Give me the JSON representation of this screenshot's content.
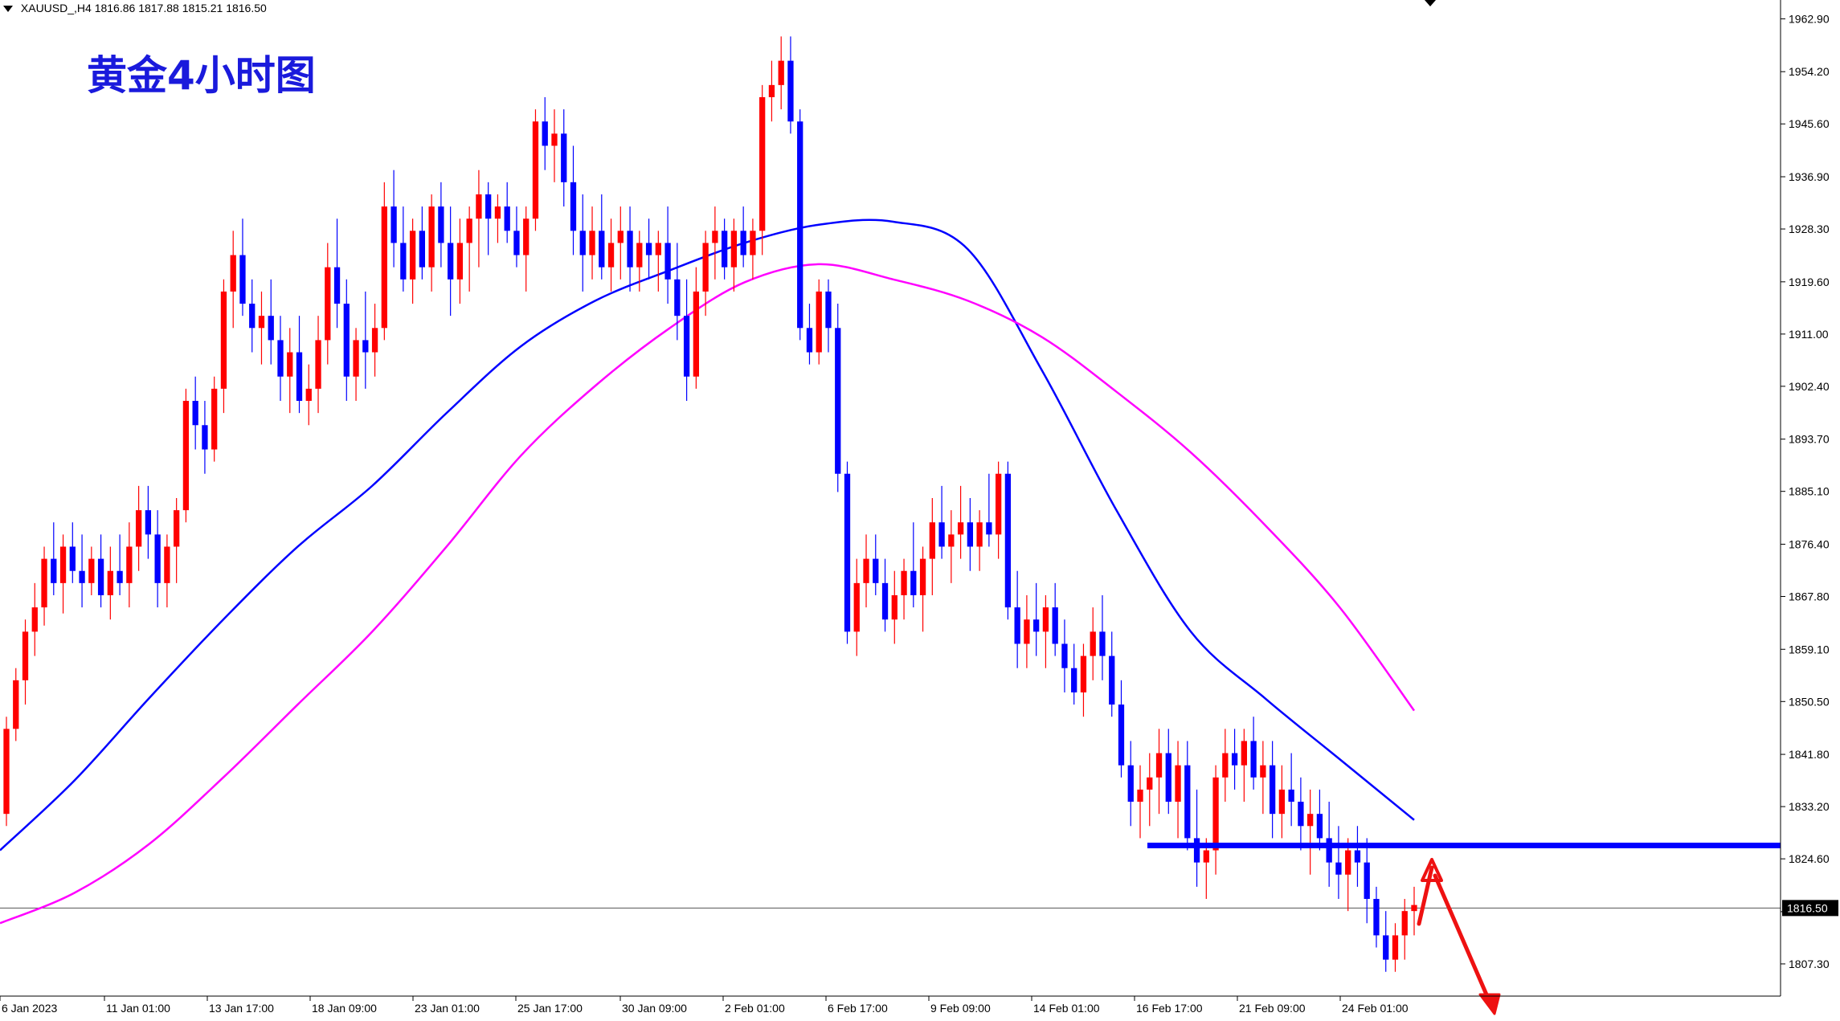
{
  "symbol": {
    "name": "XAUUSD_,H4",
    "open": "1816.86",
    "high": "1817.88",
    "low": "1815.21",
    "close": "1816.50"
  },
  "title": "黄金4小时图",
  "current_price_label": "1816.50",
  "colors": {
    "bull": "#ff0000",
    "bear": "#0000ff",
    "ma_fast": "#0000ff",
    "ma_slow": "#ff00ff",
    "annotation_line": "#0000ff",
    "annotation_arrow": "#ee1111",
    "title": "#1a1adc"
  },
  "chart_data": {
    "type": "candlestick",
    "symbol": "XAUUSD",
    "timeframe": "H4",
    "ylim": [
      1802.0,
      1966.0
    ],
    "y_ticks": [
      1962.9,
      1954.2,
      1945.6,
      1936.9,
      1928.3,
      1919.6,
      1911.0,
      1902.4,
      1893.7,
      1885.1,
      1876.4,
      1867.8,
      1859.1,
      1850.5,
      1841.8,
      1833.2,
      1824.6,
      1815.9,
      1807.3
    ],
    "x_ticks": [
      "6 Jan 2023",
      "11 Jan 01:00",
      "13 Jan 17:00",
      "18 Jan 09:00",
      "23 Jan 01:00",
      "25 Jan 17:00",
      "30 Jan 09:00",
      "2 Feb 01:00",
      "6 Feb 17:00",
      "9 Feb 09:00",
      "14 Feb 01:00",
      "16 Feb 17:00",
      "21 Feb 09:00",
      "24 Feb 01:00"
    ],
    "current_price": 1816.5,
    "ohlc": [
      [
        1832,
        1848,
        1830,
        1846
      ],
      [
        1846,
        1856,
        1844,
        1854
      ],
      [
        1854,
        1864,
        1850,
        1862
      ],
      [
        1862,
        1870,
        1858,
        1866
      ],
      [
        1866,
        1876,
        1863,
        1874
      ],
      [
        1874,
        1880,
        1868,
        1870
      ],
      [
        1870,
        1878,
        1865,
        1876
      ],
      [
        1876,
        1880,
        1870,
        1872
      ],
      [
        1872,
        1878,
        1866,
        1870
      ],
      [
        1870,
        1876,
        1868,
        1874
      ],
      [
        1874,
        1878,
        1866,
        1868
      ],
      [
        1868,
        1876,
        1864,
        1872
      ],
      [
        1872,
        1878,
        1868,
        1870
      ],
      [
        1870,
        1880,
        1866,
        1876
      ],
      [
        1876,
        1886,
        1872,
        1882
      ],
      [
        1882,
        1886,
        1874,
        1878
      ],
      [
        1878,
        1882,
        1866,
        1870
      ],
      [
        1870,
        1878,
        1866,
        1876
      ],
      [
        1876,
        1884,
        1870,
        1882
      ],
      [
        1882,
        1902,
        1880,
        1900
      ],
      [
        1900,
        1904,
        1892,
        1896
      ],
      [
        1896,
        1900,
        1888,
        1892
      ],
      [
        1892,
        1904,
        1890,
        1902
      ],
      [
        1902,
        1920,
        1898,
        1918
      ],
      [
        1918,
        1928,
        1912,
        1924
      ],
      [
        1924,
        1930,
        1914,
        1916
      ],
      [
        1916,
        1920,
        1908,
        1912
      ],
      [
        1912,
        1918,
        1906,
        1914
      ],
      [
        1914,
        1920,
        1906,
        1910
      ],
      [
        1910,
        1914,
        1900,
        1904
      ],
      [
        1904,
        1912,
        1898,
        1908
      ],
      [
        1908,
        1914,
        1898,
        1900
      ],
      [
        1900,
        1906,
        1896,
        1902
      ],
      [
        1902,
        1914,
        1898,
        1910
      ],
      [
        1910,
        1926,
        1906,
        1922
      ],
      [
        1922,
        1930,
        1912,
        1916
      ],
      [
        1916,
        1920,
        1900,
        1904
      ],
      [
        1904,
        1912,
        1900,
        1910
      ],
      [
        1910,
        1918,
        1902,
        1908
      ],
      [
        1908,
        1916,
        1904,
        1912
      ],
      [
        1912,
        1936,
        1910,
        1932
      ],
      [
        1932,
        1938,
        1922,
        1926
      ],
      [
        1926,
        1932,
        1918,
        1920
      ],
      [
        1920,
        1930,
        1916,
        1928
      ],
      [
        1928,
        1932,
        1920,
        1922
      ],
      [
        1922,
        1934,
        1918,
        1932
      ],
      [
        1932,
        1936,
        1922,
        1926
      ],
      [
        1926,
        1932,
        1914,
        1920
      ],
      [
        1920,
        1930,
        1916,
        1926
      ],
      [
        1926,
        1932,
        1918,
        1930
      ],
      [
        1930,
        1938,
        1922,
        1934
      ],
      [
        1934,
        1936,
        1924,
        1930
      ],
      [
        1930,
        1934,
        1926,
        1932
      ],
      [
        1932,
        1936,
        1926,
        1928
      ],
      [
        1928,
        1932,
        1922,
        1924
      ],
      [
        1924,
        1932,
        1918,
        1930
      ],
      [
        1930,
        1948,
        1928,
        1946
      ],
      [
        1946,
        1950,
        1938,
        1942
      ],
      [
        1942,
        1948,
        1936,
        1944
      ],
      [
        1944,
        1948,
        1932,
        1936
      ],
      [
        1936,
        1942,
        1924,
        1928
      ],
      [
        1928,
        1934,
        1918,
        1924
      ],
      [
        1924,
        1932,
        1920,
        1928
      ],
      [
        1928,
        1934,
        1920,
        1922
      ],
      [
        1922,
        1930,
        1918,
        1926
      ],
      [
        1926,
        1932,
        1920,
        1928
      ],
      [
        1928,
        1932,
        1918,
        1922
      ],
      [
        1922,
        1928,
        1918,
        1926
      ],
      [
        1926,
        1930,
        1920,
        1924
      ],
      [
        1924,
        1928,
        1918,
        1926
      ],
      [
        1926,
        1932,
        1916,
        1920
      ],
      [
        1920,
        1926,
        1910,
        1914
      ],
      [
        1914,
        1920,
        1900,
        1904
      ],
      [
        1904,
        1922,
        1902,
        1918
      ],
      [
        1918,
        1928,
        1914,
        1926
      ],
      [
        1926,
        1932,
        1920,
        1928
      ],
      [
        1928,
        1930,
        1920,
        1922
      ],
      [
        1922,
        1930,
        1918,
        1928
      ],
      [
        1928,
        1932,
        1922,
        1924
      ],
      [
        1924,
        1930,
        1920,
        1928
      ],
      [
        1928,
        1952,
        1924,
        1950
      ],
      [
        1950,
        1956,
        1946,
        1952
      ],
      [
        1952,
        1960,
        1948,
        1956
      ],
      [
        1956,
        1960,
        1944,
        1946
      ],
      [
        1946,
        1948,
        1910,
        1912
      ],
      [
        1912,
        1916,
        1906,
        1908
      ],
      [
        1908,
        1920,
        1906,
        1918
      ],
      [
        1918,
        1920,
        1908,
        1912
      ],
      [
        1912,
        1916,
        1885,
        1888
      ],
      [
        1888,
        1890,
        1860,
        1862
      ],
      [
        1862,
        1874,
        1858,
        1870
      ],
      [
        1870,
        1878,
        1866,
        1874
      ],
      [
        1874,
        1878,
        1868,
        1870
      ],
      [
        1870,
        1874,
        1862,
        1864
      ],
      [
        1864,
        1872,
        1860,
        1868
      ],
      [
        1868,
        1874,
        1864,
        1872
      ],
      [
        1872,
        1880,
        1866,
        1868
      ],
      [
        1868,
        1876,
        1862,
        1874
      ],
      [
        1874,
        1884,
        1868,
        1880
      ],
      [
        1880,
        1886,
        1874,
        1876
      ],
      [
        1876,
        1882,
        1870,
        1878
      ],
      [
        1878,
        1886,
        1874,
        1880
      ],
      [
        1880,
        1884,
        1872,
        1876
      ],
      [
        1876,
        1882,
        1872,
        1880
      ],
      [
        1880,
        1888,
        1876,
        1878
      ],
      [
        1878,
        1890,
        1874,
        1888
      ],
      [
        1888,
        1890,
        1864,
        1866
      ],
      [
        1866,
        1872,
        1856,
        1860
      ],
      [
        1860,
        1868,
        1856,
        1864
      ],
      [
        1864,
        1870,
        1858,
        1862
      ],
      [
        1862,
        1868,
        1856,
        1866
      ],
      [
        1866,
        1870,
        1858,
        1860
      ],
      [
        1860,
        1864,
        1852,
        1856
      ],
      [
        1856,
        1860,
        1850,
        1852
      ],
      [
        1852,
        1860,
        1848,
        1858
      ],
      [
        1858,
        1866,
        1854,
        1862
      ],
      [
        1862,
        1868,
        1854,
        1858
      ],
      [
        1858,
        1862,
        1848,
        1850
      ],
      [
        1850,
        1854,
        1838,
        1840
      ],
      [
        1840,
        1844,
        1830,
        1834
      ],
      [
        1834,
        1840,
        1828,
        1836
      ],
      [
        1836,
        1842,
        1830,
        1838
      ],
      [
        1838,
        1846,
        1832,
        1842
      ],
      [
        1842,
        1846,
        1832,
        1834
      ],
      [
        1834,
        1844,
        1828,
        1840
      ],
      [
        1840,
        1844,
        1826,
        1828
      ],
      [
        1828,
        1836,
        1820,
        1824
      ],
      [
        1824,
        1828,
        1818,
        1826
      ],
      [
        1826,
        1840,
        1822,
        1838
      ],
      [
        1838,
        1846,
        1834,
        1842
      ],
      [
        1842,
        1846,
        1836,
        1840
      ],
      [
        1840,
        1846,
        1834,
        1844
      ],
      [
        1844,
        1848,
        1836,
        1838
      ],
      [
        1838,
        1844,
        1832,
        1840
      ],
      [
        1840,
        1844,
        1828,
        1832
      ],
      [
        1832,
        1840,
        1828,
        1836
      ],
      [
        1836,
        1842,
        1830,
        1834
      ],
      [
        1834,
        1838,
        1826,
        1830
      ],
      [
        1830,
        1836,
        1822,
        1832
      ],
      [
        1832,
        1836,
        1826,
        1828
      ],
      [
        1828,
        1834,
        1820,
        1824
      ],
      [
        1824,
        1830,
        1818,
        1822
      ],
      [
        1822,
        1828,
        1816,
        1826
      ],
      [
        1826,
        1830,
        1820,
        1824
      ],
      [
        1824,
        1828,
        1814,
        1818
      ],
      [
        1818,
        1820,
        1810,
        1812
      ],
      [
        1812,
        1816,
        1806,
        1808
      ],
      [
        1808,
        1814,
        1806,
        1812
      ],
      [
        1812,
        1818,
        1808,
        1816
      ],
      [
        1816,
        1820,
        1812,
        1817
      ]
    ],
    "moving_averages": [
      {
        "color": "#0000ff",
        "values": [
          1826.0,
          1837.5,
          1851.0,
          1864.0,
          1876.0,
          1886.0,
          1898.0,
          1909.0,
          1916.5,
          1921.5,
          1926.0,
          1929.0,
          1929.5,
          1925.0,
          1905.0,
          1882.0,
          1862.0,
          1851.0,
          1841.0,
          1831.0
        ]
      },
      {
        "color": "#ff00ff",
        "values": [
          1814.0,
          1819.0,
          1827.0,
          1838.0,
          1850.0,
          1862.0,
          1876.0,
          1891.0,
          1902.5,
          1912.0,
          1919.5,
          1922.5,
          1920.0,
          1916.5,
          1910.5,
          1901.5,
          1891.5,
          1879.5,
          1866.0,
          1849.0
        ]
      }
    ],
    "annotations": {
      "horizontal_level": 1826.8
    }
  }
}
